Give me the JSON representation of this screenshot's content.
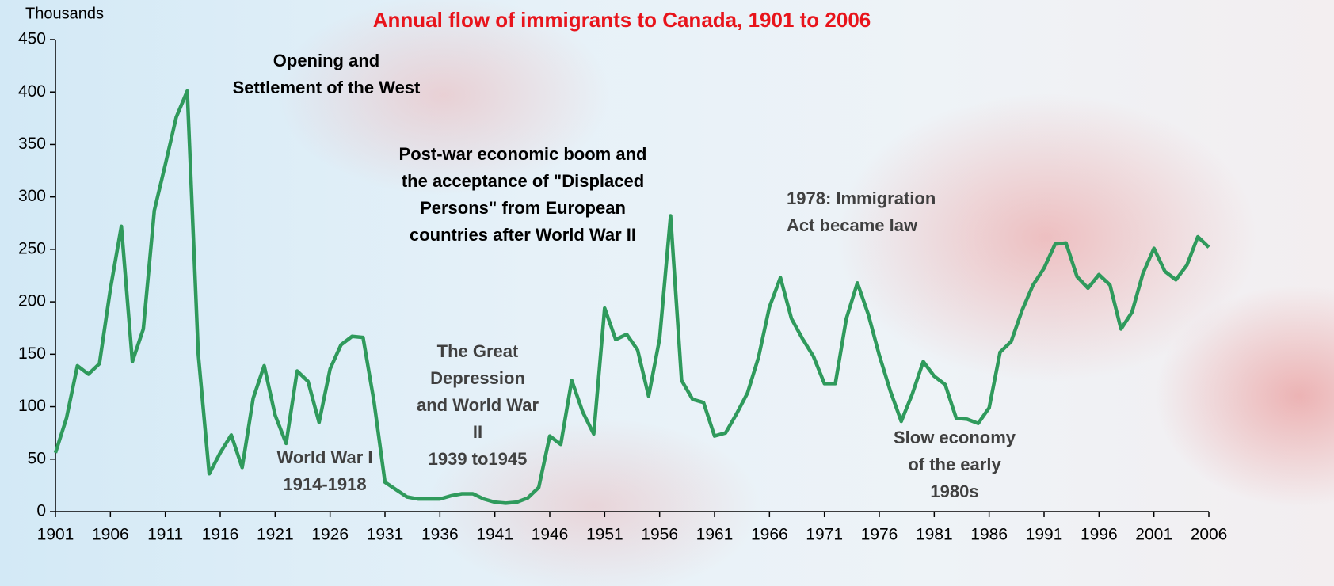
{
  "chart_data": {
    "type": "line",
    "title": "Annual flow of immigrants to Canada, 1901 to 2006",
    "y_label": "Thousands",
    "color": "#2f9a5c",
    "xlim": [
      1901,
      2006
    ],
    "ylim": [
      0,
      450
    ],
    "xticks": [
      1901,
      1906,
      1911,
      1916,
      1921,
      1926,
      1931,
      1936,
      1941,
      1946,
      1951,
      1956,
      1961,
      1966,
      1971,
      1976,
      1981,
      1986,
      1991,
      1996,
      2001,
      2006
    ],
    "yticks": [
      0,
      50,
      100,
      150,
      200,
      250,
      300,
      350,
      400,
      450
    ],
    "x": [
      1901,
      1902,
      1903,
      1904,
      1905,
      1906,
      1907,
      1908,
      1909,
      1910,
      1911,
      1912,
      1913,
      1914,
      1915,
      1916,
      1917,
      1918,
      1919,
      1920,
      1921,
      1922,
      1923,
      1924,
      1925,
      1926,
      1927,
      1928,
      1929,
      1930,
      1931,
      1932,
      1933,
      1934,
      1935,
      1936,
      1937,
      1938,
      1939,
      1940,
      1941,
      1942,
      1943,
      1944,
      1945,
      1946,
      1947,
      1948,
      1949,
      1950,
      1951,
      1952,
      1953,
      1954,
      1955,
      1956,
      1957,
      1958,
      1959,
      1960,
      1961,
      1962,
      1963,
      1964,
      1965,
      1966,
      1967,
      1968,
      1969,
      1970,
      1971,
      1972,
      1973,
      1974,
      1975,
      1976,
      1977,
      1978,
      1979,
      1980,
      1981,
      1982,
      1983,
      1984,
      1985,
      1986,
      1987,
      1988,
      1989,
      1990,
      1991,
      1992,
      1993,
      1994,
      1995,
      1996,
      1997,
      1998,
      1999,
      2000,
      2001,
      2002,
      2003,
      2004,
      2005,
      2006
    ],
    "values": [
      56,
      89,
      139,
      131,
      141,
      212,
      272,
      143,
      174,
      287,
      331,
      376,
      401,
      150,
      36,
      56,
      73,
      42,
      108,
      139,
      92,
      65,
      134,
      124,
      85,
      136,
      159,
      167,
      166,
      105,
      28,
      21,
      14,
      12,
      12,
      12,
      15,
      17,
      17,
      12,
      9,
      8,
      9,
      13,
      23,
      72,
      64,
      125,
      95,
      74,
      194,
      164,
      169,
      154,
      110,
      165,
      282,
      125,
      107,
      104,
      72,
      75,
      93,
      113,
      147,
      195,
      223,
      184,
      165,
      148,
      122,
      122,
      184,
      218,
      188,
      149,
      115,
      86,
      112,
      143,
      129,
      121,
      89,
      88,
      84,
      99,
      152,
      162,
      192,
      216,
      232,
      255,
      256,
      224,
      213,
      226,
      216,
      174,
      190,
      227,
      251,
      229,
      221,
      235,
      262,
      252
    ],
    "annotations": [
      {
        "lines": [
          "Opening and",
          "Settlement of the West"
        ],
        "color": "#000000"
      },
      {
        "lines": [
          "Post-war economic boom and",
          "the acceptance of \"Displaced",
          "Persons\" from European",
          "countries after World War II"
        ],
        "color": "#000000"
      },
      {
        "lines": [
          "1978: Immigration",
          "Act became law"
        ],
        "color": "#404040"
      },
      {
        "lines": [
          "The Great",
          "Depression",
          "and World War",
          "II",
          "1939 to1945"
        ],
        "color": "#404040"
      },
      {
        "lines": [
          "World War I",
          "1914-1918"
        ],
        "color": "#404040"
      },
      {
        "lines": [
          "Slow economy",
          "of the early",
          "1980s"
        ],
        "color": "#404040"
      }
    ]
  }
}
